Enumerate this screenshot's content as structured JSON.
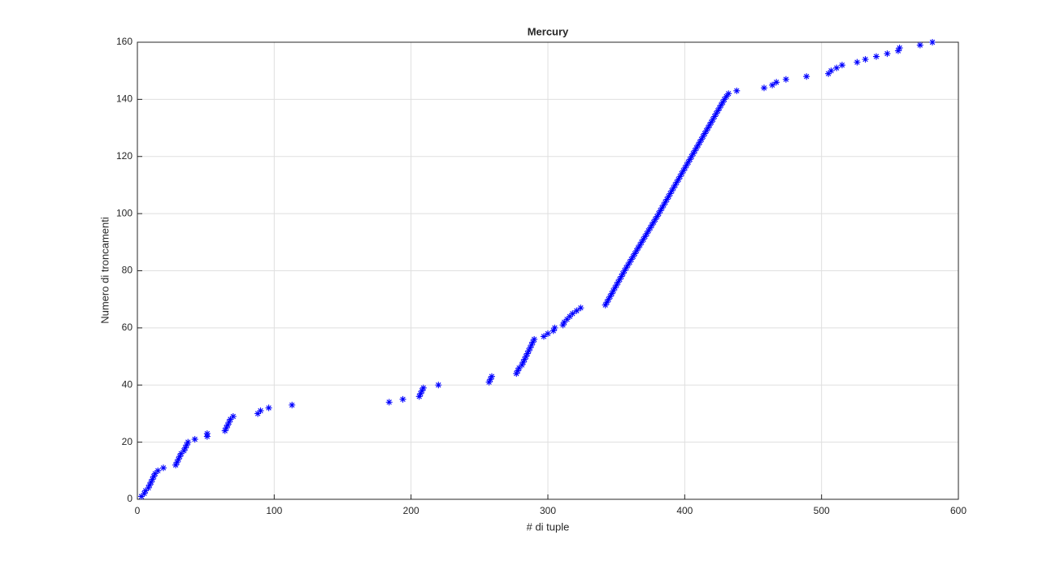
{
  "chart_data": {
    "type": "scatter",
    "title": "Mercury",
    "x_label": "# di tuple",
    "y_label": "Numero di troncamenti",
    "marker": "*",
    "color": "#0000ff",
    "grid": true,
    "xlim": [
      0,
      600
    ],
    "ylim": [
      0,
      160
    ],
    "xticks": [
      0,
      100,
      200,
      300,
      400,
      500,
      600
    ],
    "yticks": [
      0,
      20,
      40,
      60,
      80,
      100,
      120,
      140,
      160
    ],
    "x": [
      3,
      5,
      6,
      8,
      9,
      10,
      11,
      12,
      13,
      15,
      19,
      28,
      29,
      30,
      31,
      32,
      34,
      35,
      36,
      37,
      42,
      51,
      51,
      64,
      65,
      66,
      67,
      68,
      70,
      88,
      90,
      96,
      113,
      184,
      194,
      206,
      207,
      208,
      209,
      220,
      257,
      258,
      259,
      277,
      278,
      279,
      281,
      282,
      283,
      284,
      285,
      286,
      287,
      288,
      289,
      290,
      297,
      300,
      304,
      305,
      311,
      312,
      314,
      316,
      318,
      321,
      324,
      342,
      343.2,
      344.3,
      345.5,
      346.7,
      347.8,
      349,
      350.2,
      351.3,
      352.5,
      353.7,
      354.8,
      356,
      357.3,
      358.5,
      359.8,
      361,
      362.3,
      363.5,
      364.8,
      366,
      367.3,
      368.5,
      369.8,
      371,
      372.3,
      373.5,
      374.8,
      376,
      377.3,
      378.5,
      379.8,
      381,
      382.2,
      383.4,
      384.6,
      385.8,
      387,
      388.2,
      389.4,
      390.6,
      391.8,
      393,
      394.2,
      395.4,
      396.6,
      397.8,
      399,
      400.2,
      401.4,
      402.6,
      403.8,
      405,
      406.2,
      407.4,
      408.6,
      409.8,
      411,
      412.2,
      413.4,
      414.6,
      415.8,
      417,
      418.2,
      419.4,
      420.6,
      421.8,
      423,
      424.2,
      425.4,
      426.6,
      427.8,
      429,
      430.5,
      432,
      438,
      458,
      464,
      467,
      474,
      489,
      505,
      507,
      511,
      515,
      526,
      532,
      540,
      548,
      556,
      557,
      572,
      581
    ],
    "values": [
      1,
      2,
      3,
      4,
      5,
      6,
      7,
      8,
      9,
      10,
      11,
      12,
      13,
      14,
      15,
      16,
      17,
      18,
      19,
      20,
      21,
      22,
      23,
      24,
      25,
      26,
      27,
      28,
      29,
      30,
      31,
      32,
      33,
      34,
      35,
      36,
      37,
      38,
      39,
      40,
      41,
      42,
      43,
      44,
      45,
      46,
      47,
      48,
      49,
      50,
      51,
      52,
      53,
      54,
      55,
      56,
      57,
      58,
      59,
      60,
      61,
      62,
      63,
      64,
      65,
      66,
      67,
      68,
      69,
      70,
      71,
      72,
      73,
      74,
      75,
      76,
      77,
      78,
      79,
      80,
      81,
      82,
      83,
      84,
      85,
      86,
      87,
      88,
      89,
      90,
      91,
      92,
      93,
      94,
      95,
      96,
      97,
      98,
      99,
      100,
      101,
      102,
      103,
      104,
      105,
      106,
      107,
      108,
      109,
      110,
      111,
      112,
      113,
      114,
      115,
      116,
      117,
      118,
      119,
      120,
      121,
      122,
      123,
      124,
      125,
      126,
      127,
      128,
      129,
      130,
      131,
      132,
      133,
      134,
      135,
      136,
      137,
      138,
      139,
      140,
      141,
      142,
      143,
      144,
      145,
      146,
      147,
      148,
      149,
      150,
      151,
      152,
      153,
      154,
      155,
      156,
      157,
      158,
      159,
      160
    ]
  }
}
